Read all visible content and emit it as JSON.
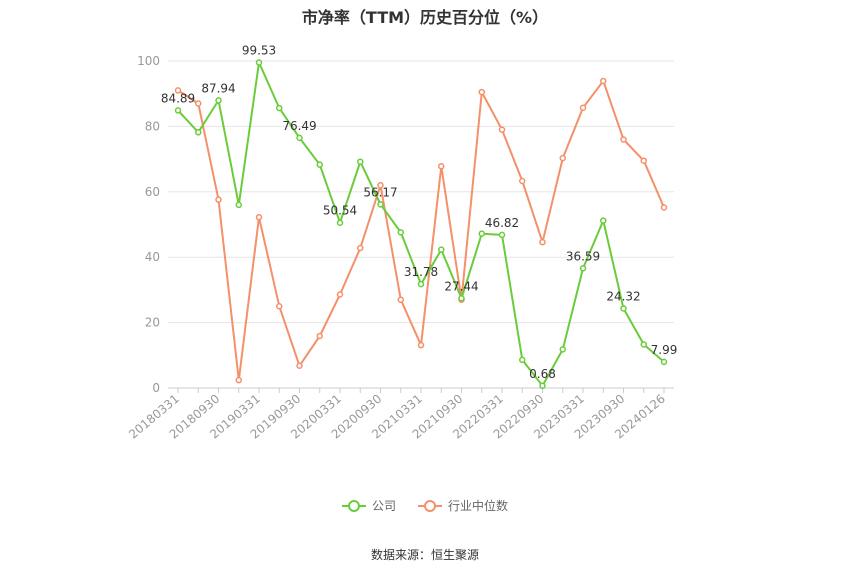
{
  "chart_data": {
    "type": "line",
    "title": "市净率（TTM）历史百分位（%）",
    "x": [
      "20180331",
      "20180630",
      "20180930",
      "20181231",
      "20190331",
      "20190630",
      "20190930",
      "20191231",
      "20200331",
      "20200630",
      "20200930",
      "20201231",
      "20210331",
      "20210630",
      "20210930",
      "20211231",
      "20220331",
      "20220630",
      "20220930",
      "20221230",
      "20230331",
      "20230630",
      "20230930",
      "20231229",
      "20240126"
    ],
    "x_tick_labels": [
      "20180331",
      "20180930",
      "20190331",
      "20190930",
      "20200331",
      "20200930",
      "20210331",
      "20210930",
      "20220331",
      "20220930",
      "20230331",
      "20230930",
      "20240126"
    ],
    "ylim": [
      0,
      100
    ],
    "y_ticks": [
      0,
      20,
      40,
      60,
      80,
      100
    ],
    "grid": true,
    "legend_position": "bottom",
    "series": [
      {
        "name": "公司",
        "color": "#6acc3b",
        "values": [
          84.89,
          78.2,
          87.94,
          56.0,
          99.53,
          85.6,
          76.49,
          68.3,
          50.54,
          69.2,
          56.17,
          47.6,
          31.78,
          42.3,
          27.44,
          47.2,
          46.82,
          8.6,
          0.68,
          11.8,
          36.59,
          51.2,
          24.32,
          13.3,
          7.99
        ],
        "labels": {
          "0": "84.89",
          "2": "87.94",
          "4": "99.53",
          "6": "76.49",
          "8": "50.54",
          "10": "56.17",
          "12": "31.78",
          "14": "27.44",
          "16": "46.82",
          "18": "0.68",
          "20": "36.59",
          "22": "24.32",
          "24": "7.99"
        }
      },
      {
        "name": "行业中位数",
        "color": "#f4906a",
        "values": [
          91.0,
          87.0,
          57.6,
          2.4,
          52.2,
          25.0,
          6.8,
          15.9,
          28.6,
          42.8,
          62.0,
          27.0,
          13.1,
          67.8,
          27.0,
          90.5,
          79.0,
          63.3,
          44.6,
          70.3,
          85.7,
          93.9,
          76.0,
          69.5,
          55.2
        ]
      }
    ],
    "source": "数据来源：恒生聚源"
  }
}
